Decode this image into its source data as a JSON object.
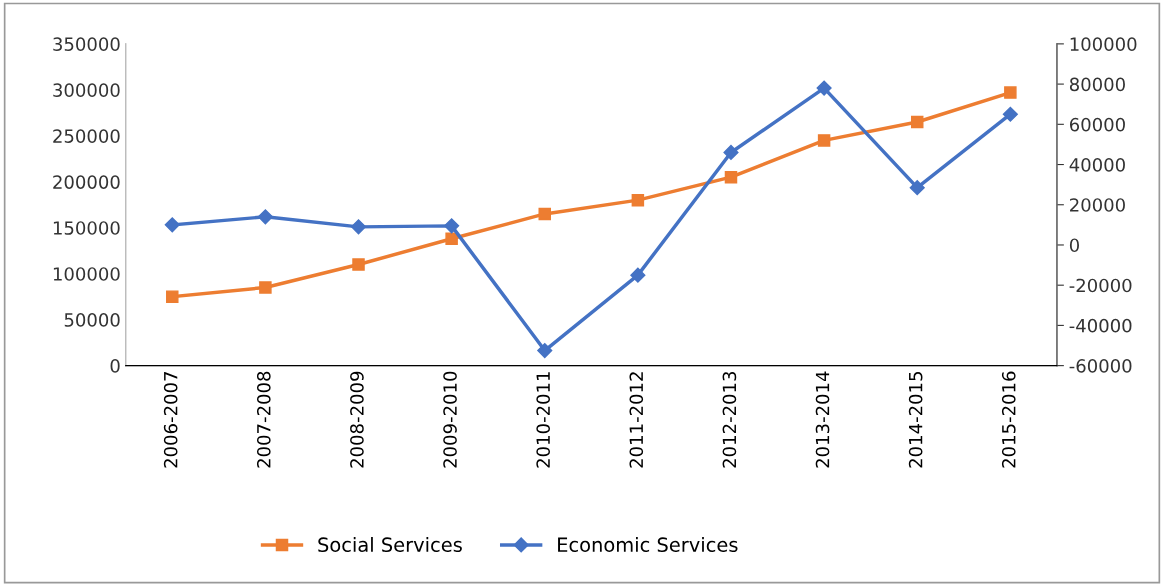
{
  "chart_data": {
    "type": "line",
    "categories": [
      "2006-2007",
      "2007-2008",
      "2008-2009",
      "2009-2010",
      "2010-2011",
      "2011-2012",
      "2012-2013",
      "2013-2014",
      "2014-2015",
      "2015-2016"
    ],
    "series": [
      {
        "name": "Social Services",
        "color": "#ed7d31",
        "marker": "square",
        "values": [
          75000,
          85000,
          110000,
          138000,
          165000,
          180000,
          205000,
          245000,
          265000,
          297000
        ]
      },
      {
        "name": "Economic Services",
        "color": "#4472c4",
        "marker": "diamond",
        "axis": "y2",
        "values": [
          10000,
          14000,
          9000,
          9500,
          -52500,
          -15000,
          46000,
          78000,
          28500,
          65000
        ]
      }
    ],
    "ylim": [
      0,
      350000
    ],
    "yticks": [
      0,
      50000,
      100000,
      150000,
      200000,
      250000,
      300000,
      350000
    ],
    "y2lim": [
      -60000,
      100000
    ],
    "y2ticks": [
      -60000,
      -40000,
      -20000,
      0,
      20000,
      40000,
      60000,
      80000,
      100000
    ],
    "grid": false,
    "legend": "bottom",
    "line_style": "solid"
  }
}
